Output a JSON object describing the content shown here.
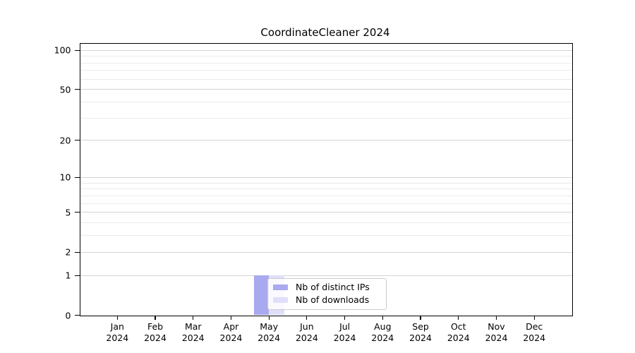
{
  "chart_data": {
    "type": "bar",
    "title": "CoordinateCleaner 2024",
    "categories": [
      "Jan 2024",
      "Feb 2024",
      "Mar 2024",
      "Apr 2024",
      "May 2024",
      "Jun 2024",
      "Jul 2024",
      "Aug 2024",
      "Sep 2024",
      "Oct 2024",
      "Nov 2024",
      "Dec 2024"
    ],
    "series": [
      {
        "name": "Nb of distinct IPs",
        "color": "#a9a9ef",
        "values": [
          0,
          0,
          0,
          0,
          1,
          0,
          0,
          0,
          0,
          0,
          0,
          0
        ]
      },
      {
        "name": "Nb of downloads",
        "color": "#dfdffa",
        "values": [
          0,
          0,
          0,
          0,
          1,
          0,
          0,
          0,
          0,
          0,
          0,
          0
        ]
      }
    ],
    "yscale": "log1p",
    "ylim": [
      0,
      112
    ],
    "y_major_ticks": [
      0,
      1,
      2,
      5,
      10,
      20,
      50,
      100
    ],
    "y_minor_ticks": [
      3,
      4,
      6,
      7,
      8,
      9,
      30,
      40,
      60,
      70,
      80,
      90
    ],
    "grid": true,
    "legend_position": "inside lower-center",
    "xlabel": "",
    "ylabel": ""
  },
  "colors": {
    "major_grid": "#d4d4d4",
    "minor_grid": "#ebebeb",
    "spine": "#000000",
    "legend_border": "#cccccc",
    "text": "#000000"
  }
}
